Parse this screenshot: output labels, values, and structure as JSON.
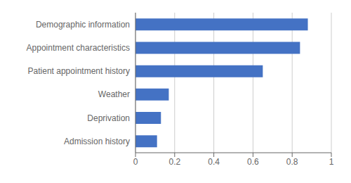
{
  "chart_data": {
    "type": "bar",
    "orientation": "horizontal",
    "categories": [
      "Admission history",
      "Deprivation",
      "Weather",
      "Patient appointment history",
      "Appointment characteristics",
      "Demographic information"
    ],
    "values": [
      0.11,
      0.13,
      0.17,
      0.65,
      0.84,
      0.88
    ],
    "color": "#4472c4",
    "xlim": [
      0,
      1.0
    ],
    "xticks": [
      0,
      0.2,
      0.4,
      0.6,
      0.8,
      1
    ],
    "grid": true
  }
}
